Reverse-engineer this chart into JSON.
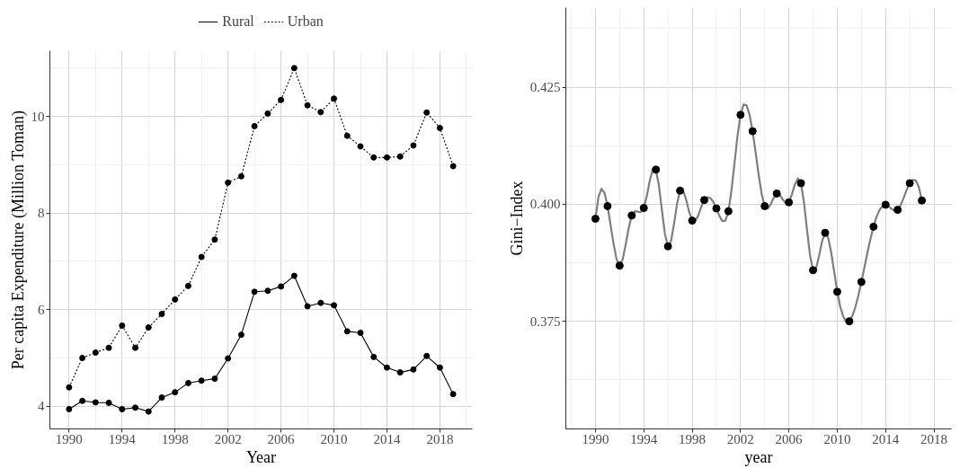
{
  "chart_data": [
    {
      "type": "line",
      "xlabel": "Year",
      "ylabel": "Per capita Expenditure (Million Toman)",
      "x": [
        1990,
        1991,
        1992,
        1993,
        1994,
        1995,
        1996,
        1997,
        1998,
        1999,
        2000,
        2001,
        2002,
        2003,
        2004,
        2005,
        2006,
        2007,
        2008,
        2009,
        2010,
        2011,
        2012,
        2013,
        2014,
        2015,
        2016,
        2017,
        2018,
        2019
      ],
      "series": [
        {
          "name": "Rural",
          "color": "#000000",
          "line_style": "solid",
          "values": [
            3.94,
            4.11,
            4.08,
            4.07,
            3.94,
            3.97,
            3.89,
            4.18,
            4.29,
            4.48,
            4.53,
            4.57,
            4.99,
            5.48,
            6.37,
            6.39,
            6.48,
            6.7,
            6.07,
            6.14,
            6.09,
            5.55,
            5.52,
            5.02,
            4.8,
            4.7,
            4.76,
            5.04,
            4.8,
            4.25
          ]
        },
        {
          "name": "Urban",
          "color": "#000000",
          "line_style": "dotted",
          "values": [
            4.39,
            5.0,
            5.11,
            5.21,
            5.67,
            5.21,
            5.63,
            5.91,
            6.21,
            6.49,
            7.09,
            7.45,
            8.63,
            8.76,
            9.8,
            10.06,
            10.34,
            11.0,
            10.23,
            10.09,
            10.37,
            9.6,
            9.38,
            9.15,
            9.15,
            9.17,
            9.4,
            10.08,
            9.76,
            8.97
          ]
        }
      ],
      "xlim": [
        1988.55,
        2020.45
      ],
      "xticks": [
        1990,
        1994,
        1998,
        2002,
        2006,
        2010,
        2014,
        2018
      ],
      "ylim": [
        3.53,
        11.36
      ],
      "yticks": [
        4,
        6,
        8,
        10
      ],
      "grid": true,
      "legend": "top",
      "marker": "circle"
    },
    {
      "type": "scatter",
      "xlabel": "year",
      "ylabel": "Gini−Index",
      "x": [
        1990,
        1991,
        1992,
        1993,
        1994,
        1995,
        1996,
        1997,
        1998,
        1999,
        2000,
        2001,
        2002,
        2003,
        2004,
        2005,
        2006,
        2007,
        2008,
        2009,
        2010,
        2011,
        2012,
        2013,
        2014,
        2015,
        2016,
        2017
      ],
      "series": [
        {
          "type": "line",
          "color": "#7f7f7f",
          "x": [
            1990,
            1990.25,
            1990.5,
            1990.75,
            1991,
            1991.25,
            1991.5,
            1991.75,
            1992,
            1992.25,
            1992.5,
            1992.75,
            1993,
            1993.25,
            1993.5,
            1993.75,
            1994,
            1994.25,
            1994.5,
            1994.75,
            1995,
            1995.25,
            1995.5,
            1995.75,
            1996,
            1996.25,
            1996.5,
            1996.75,
            1997,
            1997.25,
            1997.5,
            1997.75,
            1998,
            1998.25,
            1998.5,
            1998.75,
            1999,
            1999.25,
            1999.5,
            1999.75,
            2000,
            2000.25,
            2000.5,
            2000.75,
            2001,
            2001.25,
            2001.5,
            2001.75,
            2002,
            2002.25,
            2002.5,
            2002.75,
            2003,
            2003.25,
            2003.5,
            2003.75,
            2004,
            2004.25,
            2004.5,
            2004.75,
            2005,
            2005.25,
            2005.5,
            2005.75,
            2006,
            2006.25,
            2006.5,
            2006.75,
            2007,
            2007.25,
            2007.5,
            2007.75,
            2008,
            2008.25,
            2008.5,
            2008.75,
            2009,
            2009.25,
            2009.5,
            2009.75,
            2010,
            2010.25,
            2010.5,
            2010.75,
            2011,
            2011.25,
            2011.5,
            2011.75,
            2012,
            2012.25,
            2012.5,
            2012.75,
            2013,
            2013.25,
            2013.5,
            2013.75,
            2014,
            2014.25,
            2014.5,
            2014.75,
            2015,
            2015.25,
            2015.5,
            2015.75,
            2016,
            2016.25,
            2016.5,
            2016.75,
            2017
          ],
          "values": [
            0.3969,
            0.4016,
            0.4033,
            0.4024,
            0.3996,
            0.3956,
            0.3915,
            0.3882,
            0.3869,
            0.3882,
            0.3914,
            0.3949,
            0.3976,
            0.3985,
            0.3984,
            0.3983,
            0.3992,
            0.4018,
            0.4051,
            0.4075,
            0.4074,
            0.404,
            0.3987,
            0.3936,
            0.391,
            0.3921,
            0.3958,
            0.4001,
            0.4029,
            0.4029,
            0.401,
            0.3984,
            0.3965,
            0.3964,
            0.3976,
            0.3994,
            0.4009,
            0.4015,
            0.4013,
            0.4005,
            0.3991,
            0.3975,
            0.3964,
            0.3965,
            0.3985,
            0.4029,
            0.4087,
            0.4146,
            0.4191,
            0.4213,
            0.4211,
            0.4191,
            0.4156,
            0.4111,
            0.4063,
            0.4022,
            0.3996,
            0.3991,
            0.4,
            0.4014,
            0.4023,
            0.402,
            0.401,
            0.4002,
            0.4004,
            0.4021,
            0.4043,
            0.4055,
            0.4045,
            0.4004,
            0.3946,
            0.3891,
            0.3859,
            0.3863,
            0.389,
            0.3921,
            0.3939,
            0.3929,
            0.3897,
            0.3855,
            0.3813,
            0.3781,
            0.376,
            0.3749,
            0.375,
            0.3761,
            0.378,
            0.3805,
            0.3834,
            0.3865,
            0.3897,
            0.3926,
            0.3952,
            0.3973,
            0.3988,
            0.3996,
            0.3999,
            0.3996,
            0.399,
            0.3986,
            0.3988,
            0.3998,
            0.4014,
            0.4031,
            0.4045,
            0.4052,
            0.4051,
            0.4037,
            0.4008
          ]
        },
        {
          "type": "scatter",
          "color": "#000000",
          "marker": "circle",
          "values": [
            0.3969,
            0.3996,
            0.3869,
            0.3976,
            0.3992,
            0.4074,
            0.391,
            0.4029,
            0.3965,
            0.4009,
            0.3991,
            0.3985,
            0.4191,
            0.4156,
            0.3996,
            0.4023,
            0.4004,
            0.4045,
            0.3859,
            0.3939,
            0.3813,
            0.375,
            0.3834,
            0.3952,
            0.3999,
            0.3988,
            0.4045,
            0.4008
          ]
        }
      ],
      "xlim": [
        1987.55,
        2019.45
      ],
      "xticks": [
        1990,
        1994,
        1998,
        2002,
        2006,
        2010,
        2014,
        2018
      ],
      "ylim": [
        0.352,
        0.442
      ],
      "yticks": [
        {
          "value": 0.375,
          "label": "0.375"
        },
        {
          "value": 0.4,
          "label": "0.400"
        },
        {
          "value": 0.425,
          "label": "0.425"
        }
      ],
      "grid": true
    }
  ]
}
